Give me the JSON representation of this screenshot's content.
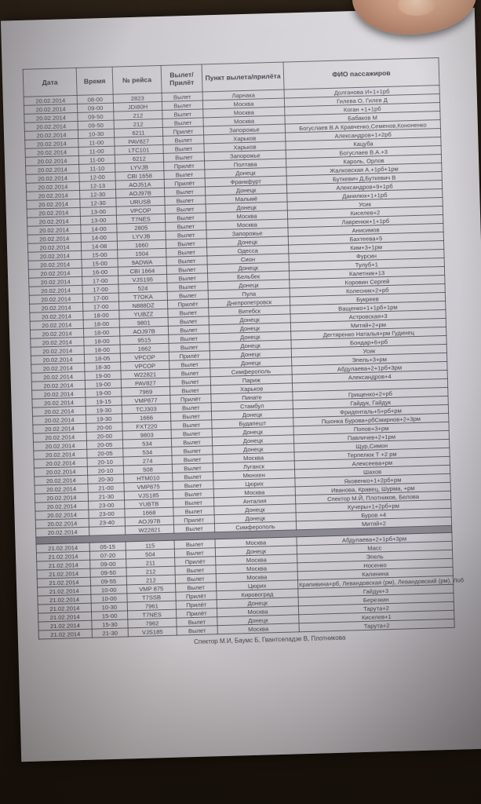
{
  "table": {
    "column_keys": [
      "date",
      "time",
      "flight_no",
      "direction",
      "point",
      "passengers"
    ],
    "headers": [
      "Дата",
      "Время",
      "№ рейса",
      "Вылет/ Прилёт",
      "Пункт вылета/прилёта",
      "ФИО пассажиров"
    ],
    "rows": [
      [
        "20.02.2014",
        "08-00",
        "2823",
        "Вылет",
        "Ларнака",
        "Долганова И+1+1рб"
      ],
      [
        "20.02.2014",
        "09-00",
        "JDI80H",
        "Вылет",
        "Москва",
        "Гилева О, Гилев Д"
      ],
      [
        "20.02.2014",
        "09-50",
        "212",
        "Вылет",
        "Москва",
        "Коган +1+1рб"
      ],
      [
        "20.02.2014",
        "09-50",
        "212",
        "Вылет",
        "Москва",
        "Бабаков М"
      ],
      [
        "20.02.2014",
        "10-30",
        "6211",
        "Прилёт",
        "Запорожье",
        "Богуслаев В.А Кравченко,Семенов,Кононенко"
      ],
      [
        "20.02.2014",
        "11-00",
        "PAV827",
        "Вылет",
        "Харьков",
        "Александров+1+2рб"
      ],
      [
        "20.02.2014",
        "11-00",
        "LTC101",
        "Вылет",
        "Харьков",
        "Кацуба"
      ],
      [
        "20.02.2014",
        "11-00",
        "6212",
        "Вылет",
        "Запорожье",
        "Богуслаев В.А.+3"
      ],
      [
        "20.02.2014",
        "11-10",
        "LYVJB",
        "Прилёт",
        "Полтава",
        "Кароль, Орлов"
      ],
      [
        "20.02.2014",
        "12-00",
        "CBI 1658",
        "Вылет",
        "Донецк",
        "Жалковская А.+1рб+1рм"
      ],
      [
        "20.02.2014",
        "12-13",
        "AOJ51A",
        "Прилёт",
        "Франкфурт",
        "Буткевич Д,Буткевич В"
      ],
      [
        "20.02.2014",
        "12-30",
        "AOJ97B",
        "Вылет",
        "Донецк",
        "Александров+9+1рб"
      ],
      [
        "20.02.2014",
        "12-30",
        "URUSB",
        "Вылет",
        "Мальмё",
        "Данилюк+1+1рб"
      ],
      [
        "20.02.2014",
        "13-00",
        "VPCOP",
        "Вылет",
        "Донецк",
        "Усик"
      ],
      [
        "20.02.2014",
        "13-00",
        "T7NES",
        "Вылет",
        "Москва",
        "Киселев+2"
      ],
      [
        "20.02.2014",
        "14-00",
        "2805",
        "Вылет",
        "Москва",
        "Лавренюк+1+1рб"
      ],
      [
        "20.02.2014",
        "14-00",
        "LYVJB",
        "Вылет",
        "Запорожье",
        "Анисимов"
      ],
      [
        "20.02.2014",
        "14-08",
        "1660",
        "Вылет",
        "Донецк",
        "Бахтеева+5"
      ],
      [
        "20.02.2014",
        "15-00",
        "1504",
        "Вылет",
        "Одесса",
        "Ким+3+1рм"
      ],
      [
        "20.02.2014",
        "15-00",
        "9ADWA",
        "Вылет",
        "Сион",
        "Фурсин"
      ],
      [
        "20.02.2014",
        "16-00",
        "CBI 1664",
        "Вылет",
        "Донецк",
        "Тулуб+1"
      ],
      [
        "20.02.2014",
        "17-00",
        "VJS195",
        "Вылет",
        "Бельбек",
        "Калетник+13"
      ],
      [
        "20.02.2014",
        "17-00",
        "524",
        "Вылет",
        "Донецк",
        "Коровин Сергей"
      ],
      [
        "20.02.2014",
        "17-00",
        "T7OKA",
        "Вылет",
        "Пула",
        "Колесник+2+рб"
      ],
      [
        "20.02.2014",
        "17-00",
        "N888DZ",
        "Прилёт",
        "Днепропетровск",
        "Букреев"
      ],
      [
        "20.02.2014",
        "18-00",
        "YUBZZ",
        "Вылет",
        "Витебск",
        "Ващенко+1+1рб+1рм"
      ],
      [
        "20.02.2014",
        "18-00",
        "9801",
        "Вылет",
        "Донецк",
        "Астровская+3"
      ],
      [
        "20.02.2014",
        "18-00",
        "AOJ97B",
        "Вылет",
        "Донецк",
        "Митяй+2+рм"
      ],
      [
        "20.02.2014",
        "18-00",
        "9515",
        "Вылет",
        "Донецк",
        "Дегтяренко Наталья+рм Гудинец"
      ],
      [
        "20.02.2014",
        "18-00",
        "1662",
        "Вылет",
        "Донецк",
        "Бондар+6+рб"
      ],
      [
        "20.02.2014",
        "18-05",
        "VPCOP",
        "Прилёт",
        "Донецк",
        "Усик"
      ],
      [
        "20.02.2014",
        "18-30",
        "VPCOP",
        "Вылет",
        "Донецк",
        "Эпель+3+рм"
      ],
      [
        "20.02.2014",
        "19-00",
        "W22821",
        "Вылет",
        "Симферополь",
        "Абдулаева+2+1рб+3рм"
      ],
      [
        "20.02.2014",
        "19-00",
        "PAV827",
        "Вылет",
        "Париж",
        "Александров+4"
      ],
      [
        "20.02.2014",
        "19-00",
        "7969",
        "Вылет",
        "Харьков",
        ""
      ],
      [
        "20.02.2014",
        "19-15",
        "VMP877",
        "Прилёт",
        "Пинате",
        "Грищенко+2+рб"
      ],
      [
        "20.02.2014",
        "19-30",
        "TCJ303",
        "Вылет",
        "Стамбул",
        "Гайдук, Гайдук"
      ],
      [
        "20.02.2014",
        "19-30",
        "1666",
        "Вылет",
        "Донецк",
        "Фриденталь+5+рб+рм"
      ],
      [
        "20.02.2014",
        "20-00",
        "FXT220",
        "Вылет",
        "Будапешт",
        "Пшонка Бурова+рбСмирнов+2+3рм"
      ],
      [
        "20.02.2014",
        "20-00",
        "9803",
        "Вылет",
        "Донецк",
        "Попов+3+рм"
      ],
      [
        "20.02.2014",
        "20-05",
        "534",
        "Вылет",
        "Донецк",
        "Павличев+2+1рм"
      ],
      [
        "20.02.2014",
        "20-05",
        "534",
        "Вылет",
        "Донецк",
        "Щур,Симон"
      ],
      [
        "20.02.2014",
        "20-10",
        "274",
        "Вылет",
        "Москва",
        "Терпелюк Т +2 рм"
      ],
      [
        "20.02.2014",
        "20-10",
        "508",
        "Вылет",
        "Луганск",
        "Алексеева+рм"
      ],
      [
        "20.02.2014",
        "20-30",
        "HTM010",
        "Вылет",
        "Мюнхен",
        "Шахов"
      ],
      [
        "20.02.2014",
        "21-00",
        "VMP875",
        "Вылет",
        "Цюрих",
        "Яковенко+1+2рб+рм"
      ],
      [
        "20.02.2014",
        "21-30",
        "VJS185",
        "Вылет",
        "Москва",
        "Иванова, Кравец, Шурма, +рм"
      ],
      [
        "20.02.2014",
        "23-00",
        "YUBTB",
        "Вылет",
        "Анталия",
        "Спектор М.Й, Плотников, Белова"
      ],
      [
        "20.02.2014",
        "23-00",
        "1668",
        "Вылет",
        "Донецк",
        "Кучеры+1+2рб+рм"
      ],
      [
        "20.02.2014",
        "23-40",
        "AOJ97B",
        "Прилёт",
        "Донецк",
        "Буров +4"
      ],
      [
        "20.02.2014",
        "",
        "W22821",
        "Вылет",
        "Симферополь",
        "Митяй+2"
      ],
      "SEPARATOR",
      [
        "21.02.2014",
        "05-15",
        "115",
        "Вылет",
        "Москва",
        "Абдулаева+2+1рб+3рм"
      ],
      [
        "21.02.2014",
        "07-20",
        "504",
        "Вылет",
        "Донецк",
        "Масс"
      ],
      [
        "21.02.2014",
        "09-00",
        "211",
        "Прилёт",
        "Москва",
        "Эпель"
      ],
      [
        "21.02.2014",
        "09-50",
        "212",
        "Вылет",
        "Москва",
        "Носенко"
      ],
      [
        "21.02.2014",
        "09-55",
        "212",
        "Вылет",
        "Москва",
        "Калинина"
      ],
      [
        "21.02.2014",
        "10-00",
        "VMP 875",
        "Вылет",
        "Цюрих",
        "Крапивина+рб, Левандовская (рм), Левандовский (рм), Лоб"
      ],
      [
        "21.02.2014",
        "10-00",
        "T7SSB",
        "Прилёт",
        "Кировоград",
        "Гайдук+3"
      ],
      [
        "21.02.2014",
        "10-30",
        "7961",
        "Прилёт",
        "Донецк",
        "Березкин"
      ],
      [
        "21.02.2014",
        "15-00",
        "T7NES",
        "Прилёт",
        "Москва",
        "Тарута+2"
      ],
      [
        "21.02.2014",
        "15-30",
        "7962",
        "Вылет",
        "Донецк",
        "Киселев+1"
      ],
      [
        "21.02.2014",
        "21-30",
        "VJS185",
        "Вылет",
        "Москва",
        "Тарута+2"
      ]
    ]
  },
  "footer_note": "Спектор М.И, Баумс Б, Гвантселадзе В, Плотникова"
}
